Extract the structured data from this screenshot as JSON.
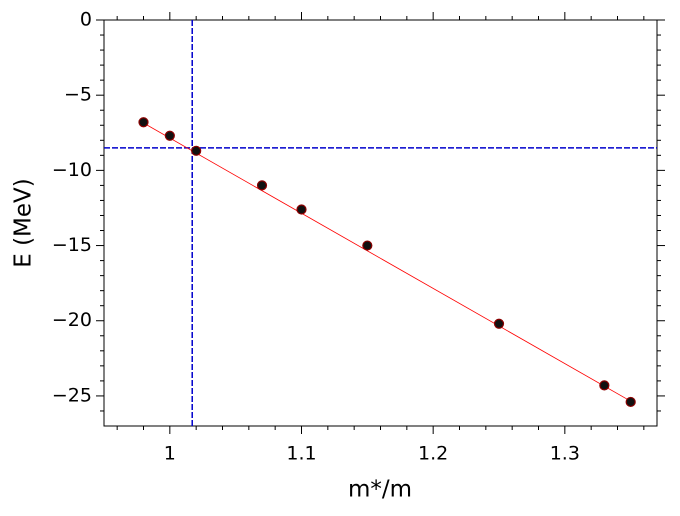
{
  "chart_data": {
    "type": "scatter",
    "xlabel": "m*/m",
    "ylabel": "E (MeV)",
    "points": {
      "color": "#111111",
      "edge": "#8b0000",
      "x": [
        0.98,
        1.0,
        1.02,
        1.07,
        1.1,
        1.15,
        1.25,
        1.33,
        1.35
      ],
      "values": [
        -6.8,
        -7.7,
        -8.7,
        -11.0,
        -12.6,
        -15.0,
        -20.2,
        -24.3,
        -25.4
      ]
    },
    "fit": {
      "color": "#ff0000",
      "x": [
        0.98,
        1.35
      ],
      "values": [
        -6.85,
        -25.35
      ]
    },
    "hline": {
      "value": -8.5,
      "color": "#0000cc"
    },
    "vline": {
      "value": 1.017,
      "color": "#0000cc"
    },
    "xlim": [
      0.95,
      1.37
    ],
    "ylim": [
      -27,
      0
    ],
    "xticks": [
      1,
      1.1,
      1.2,
      1.3
    ],
    "yticks": [
      0,
      {
        "value": -5,
        "label": "−5"
      },
      {
        "value": -10,
        "label": "−10"
      },
      {
        "value": -15,
        "label": "−15"
      },
      {
        "value": -20,
        "label": "−20"
      },
      {
        "value": -25,
        "label": "−25"
      }
    ],
    "xminorticks": [
      0.96,
      0.98,
      1.02,
      1.04,
      1.06,
      1.08,
      1.12,
      1.14,
      1.16,
      1.18,
      1.22,
      1.24,
      1.26,
      1.28,
      1.32,
      1.34,
      1.36
    ],
    "yminorticks": [
      -1,
      -2,
      -3,
      -4,
      -6,
      -7,
      -8,
      -9,
      -11,
      -12,
      -13,
      -14,
      -16,
      -17,
      -18,
      -19,
      -21,
      -22,
      -23,
      -24,
      -26
    ]
  }
}
